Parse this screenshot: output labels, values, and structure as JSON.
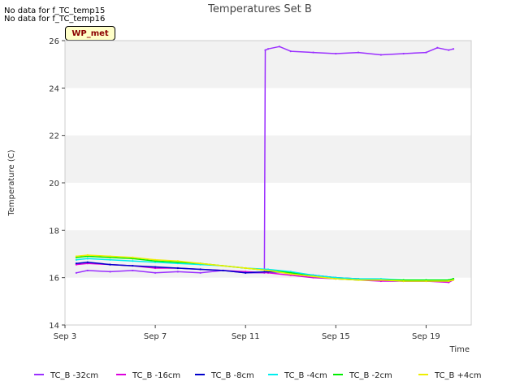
{
  "notes": [
    "No data for f_TC_temp15",
    "No data for f_TC_temp16"
  ],
  "badge": "WP_met",
  "chart_data": {
    "type": "line",
    "title": "Temperatures Set B",
    "xlabel": "Time",
    "ylabel": "Temperature (C)",
    "xlim": [
      "2023-09-03",
      "2023-09-21"
    ],
    "ylim": [
      14,
      26
    ],
    "x_ticks": [
      "Sep 3",
      "Sep 7",
      "Sep 11",
      "Sep 15",
      "Sep 19"
    ],
    "y_ticks": [
      14,
      16,
      18,
      20,
      22,
      24,
      26
    ],
    "grid": "horizontal bands",
    "legend_position": "bottom",
    "colors": {
      "TC_B -32cm": "#9b30ff",
      "TC_B -16cm": "#dd00dd",
      "TC_B -8cm": "#0000cc",
      "TC_B -4cm": "#00eeee",
      "TC_B -2cm": "#00ee00",
      "TC_B +4cm": "#eeee00"
    },
    "series": [
      {
        "name": "TC_B -32cm",
        "x": [
          "2023-09-03T12:00",
          "2023-09-04",
          "2023-09-05",
          "2023-09-06",
          "2023-09-07",
          "2023-09-08",
          "2023-09-09",
          "2023-09-10",
          "2023-09-11",
          "2023-09-11T20:00",
          "2023-09-11T21:00",
          "2023-09-12",
          "2023-09-12T12:00",
          "2023-09-13",
          "2023-09-14",
          "2023-09-15",
          "2023-09-16",
          "2023-09-17",
          "2023-09-18",
          "2023-09-19",
          "2023-09-19T12:00",
          "2023-09-20",
          "2023-09-20T05:00"
        ],
        "values": [
          16.2,
          16.3,
          16.25,
          16.3,
          16.2,
          16.25,
          16.2,
          16.3,
          16.2,
          16.2,
          25.6,
          25.65,
          25.75,
          25.55,
          25.5,
          25.45,
          25.5,
          25.4,
          25.45,
          25.5,
          25.7,
          25.6,
          25.65
        ]
      },
      {
        "name": "TC_B -16cm",
        "x": [
          "2023-09-03T12:00",
          "2023-09-04",
          "2023-09-05",
          "2023-09-06",
          "2023-09-07",
          "2023-09-08",
          "2023-09-09",
          "2023-09-10",
          "2023-09-11",
          "2023-09-12",
          "2023-09-13",
          "2023-09-14",
          "2023-09-15",
          "2023-09-16",
          "2023-09-17",
          "2023-09-18",
          "2023-09-19",
          "2023-09-20",
          "2023-09-20T05:00"
        ],
        "values": [
          16.55,
          16.6,
          16.55,
          16.5,
          16.4,
          16.4,
          16.35,
          16.3,
          16.25,
          16.2,
          16.1,
          16.0,
          15.95,
          15.9,
          15.85,
          15.85,
          15.85,
          15.8,
          15.9
        ]
      },
      {
        "name": "TC_B -8cm",
        "x": [
          "2023-09-03T12:00",
          "2023-09-04",
          "2023-09-05",
          "2023-09-06",
          "2023-09-07",
          "2023-09-08",
          "2023-09-09",
          "2023-09-10",
          "2023-09-11",
          "2023-09-12",
          "2023-09-13",
          "2023-09-14",
          "2023-09-15",
          "2023-09-16",
          "2023-09-17",
          "2023-09-18",
          "2023-09-19",
          "2023-09-20",
          "2023-09-20T05:00"
        ],
        "values": [
          16.6,
          16.65,
          16.55,
          16.5,
          16.45,
          16.4,
          16.35,
          16.3,
          16.2,
          16.25,
          16.2,
          16.1,
          16.0,
          15.95,
          15.9,
          15.85,
          15.85,
          15.85,
          15.95
        ]
      },
      {
        "name": "TC_B -4cm",
        "x": [
          "2023-09-03T12:00",
          "2023-09-04",
          "2023-09-05",
          "2023-09-06",
          "2023-09-07",
          "2023-09-08",
          "2023-09-09",
          "2023-09-10",
          "2023-09-11",
          "2023-09-12",
          "2023-09-13",
          "2023-09-14",
          "2023-09-15",
          "2023-09-16",
          "2023-09-17",
          "2023-09-18",
          "2023-09-19",
          "2023-09-20",
          "2023-09-20T05:00"
        ],
        "values": [
          16.75,
          16.8,
          16.75,
          16.7,
          16.65,
          16.6,
          16.55,
          16.5,
          16.4,
          16.35,
          16.25,
          16.1,
          16.0,
          15.95,
          15.95,
          15.9,
          15.9,
          15.9,
          15.95
        ]
      },
      {
        "name": "TC_B -2cm",
        "x": [
          "2023-09-03T12:00",
          "2023-09-04",
          "2023-09-05",
          "2023-09-06",
          "2023-09-07",
          "2023-09-08",
          "2023-09-09",
          "2023-09-10",
          "2023-09-11",
          "2023-09-12",
          "2023-09-13",
          "2023-09-14",
          "2023-09-15",
          "2023-09-16",
          "2023-09-17",
          "2023-09-18",
          "2023-09-19",
          "2023-09-20",
          "2023-09-20T05:00"
        ],
        "values": [
          16.85,
          16.9,
          16.85,
          16.8,
          16.7,
          16.65,
          16.6,
          16.5,
          16.4,
          16.3,
          16.2,
          16.05,
          15.95,
          15.9,
          15.9,
          15.9,
          15.9,
          15.9,
          15.95
        ]
      },
      {
        "name": "TC_B +4cm",
        "x": [
          "2023-09-03T12:00",
          "2023-09-04",
          "2023-09-05",
          "2023-09-06",
          "2023-09-07",
          "2023-09-08",
          "2023-09-09",
          "2023-09-10",
          "2023-09-11",
          "2023-09-12",
          "2023-09-13",
          "2023-09-14",
          "2023-09-15",
          "2023-09-16",
          "2023-09-17",
          "2023-09-18",
          "2023-09-19",
          "2023-09-20",
          "2023-09-20T05:00"
        ],
        "values": [
          16.9,
          16.95,
          16.9,
          16.85,
          16.75,
          16.7,
          16.6,
          16.5,
          16.4,
          16.3,
          16.15,
          16.05,
          15.95,
          15.9,
          15.9,
          15.85,
          15.85,
          15.85,
          15.9
        ]
      }
    ]
  }
}
